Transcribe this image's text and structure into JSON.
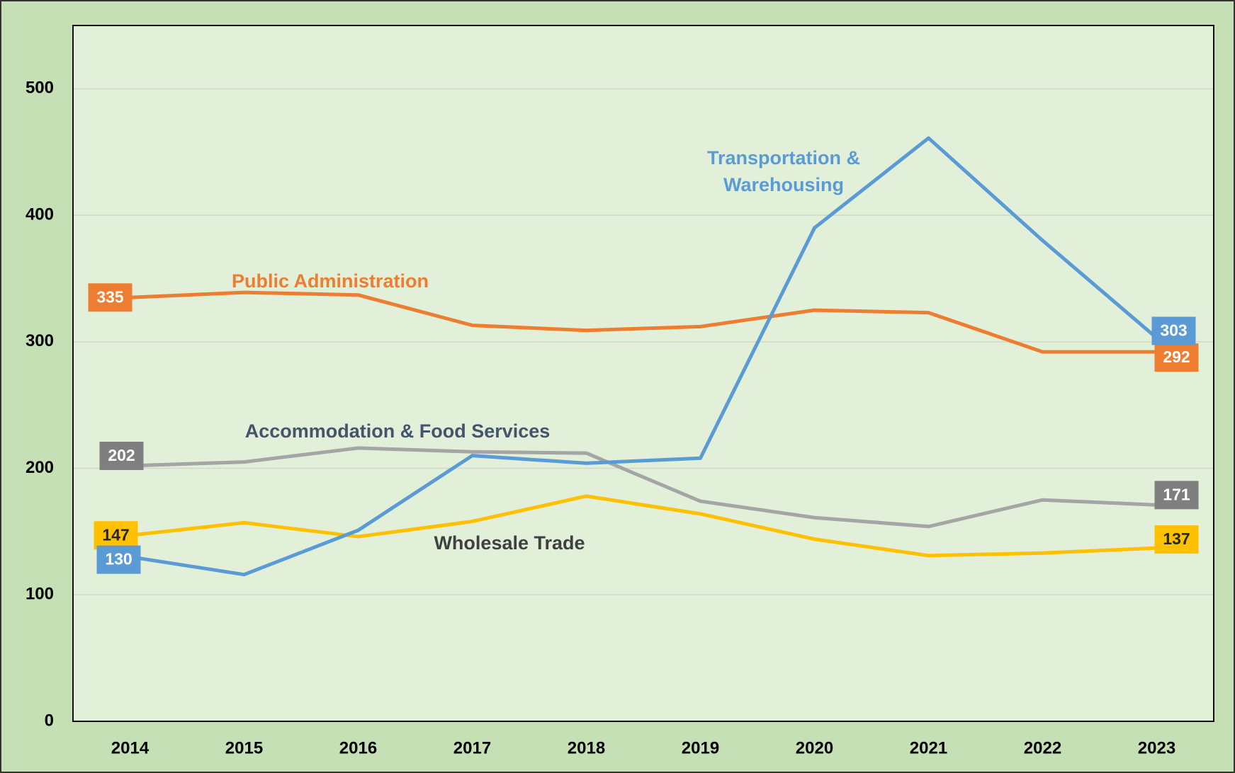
{
  "chart_data": {
    "type": "line",
    "categories": [
      "2014",
      "2015",
      "2016",
      "2017",
      "2018",
      "2019",
      "2020",
      "2021",
      "2022",
      "2023"
    ],
    "series": [
      {
        "name": "Public Administration",
        "color": "#ed7d31",
        "values": [
          335,
          339,
          337,
          313,
          309,
          312,
          325,
          323,
          292,
          292
        ]
      },
      {
        "name": "Accommodation & Food Services",
        "color": "#a5a5a5",
        "values": [
          202,
          205,
          216,
          213,
          212,
          174,
          161,
          154,
          175,
          171
        ]
      },
      {
        "name": "Wholesale Trade",
        "color": "#ffc000",
        "values": [
          147,
          157,
          146,
          158,
          178,
          164,
          144,
          131,
          133,
          137
        ]
      },
      {
        "name": "Transportation & Warehousing",
        "color": "#5b9bd5",
        "values": [
          130,
          116,
          151,
          210,
          204,
          208,
          390,
          461,
          380,
          303
        ]
      }
    ],
    "ylim": [
      0,
      550
    ],
    "yticks": [
      0,
      100,
      200,
      300,
      400,
      500
    ],
    "grid": true
  }
}
